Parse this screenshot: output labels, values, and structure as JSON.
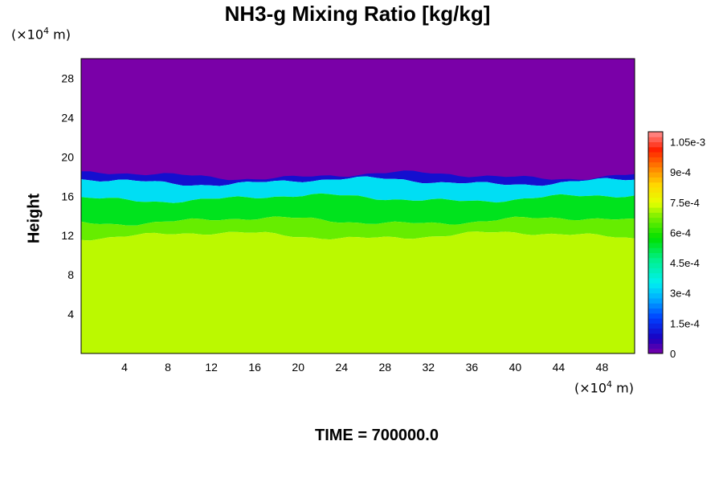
{
  "chart_data": {
    "type": "heatmap",
    "title": "NH3-g Mixing Ratio [kg/kg]",
    "ylabel": "Height",
    "xlabel": "",
    "x_unit": {
      "prefix": "(×10",
      "exp": "4",
      "suffix": " m)"
    },
    "y_unit": {
      "prefix": "(×10",
      "exp": "4",
      "suffix": " m)"
    },
    "footer": "TIME = 700000.0",
    "xlim": [
      0,
      51
    ],
    "ylim": [
      0,
      30
    ],
    "x_ticks": [
      4,
      8,
      12,
      16,
      20,
      24,
      28,
      32,
      36,
      40,
      44,
      48
    ],
    "y_ticks": [
      4,
      8,
      12,
      16,
      20,
      24,
      28
    ],
    "colorbar": {
      "range": [
        0,
        0.0011
      ],
      "tick_values": [
        0,
        0.00015,
        0.0003,
        0.00045,
        0.0006,
        0.00075,
        0.0009,
        0.00105
      ],
      "tick_labels": [
        "0",
        "1.5e-4",
        "3e-4",
        "4.5e-4",
        "6e-4",
        "7.5e-4",
        "9e-4",
        "1.05e-3"
      ],
      "color_stops": [
        [
          0.0,
          "#7a00a8"
        ],
        [
          0.07,
          "#1a00c0"
        ],
        [
          0.16,
          "#0040ff"
        ],
        [
          0.25,
          "#00b0ff"
        ],
        [
          0.32,
          "#00f0f0"
        ],
        [
          0.42,
          "#00f090"
        ],
        [
          0.52,
          "#00e000"
        ],
        [
          0.62,
          "#80f000"
        ],
        [
          0.68,
          "#e6ff00"
        ],
        [
          0.76,
          "#ffd800"
        ],
        [
          0.84,
          "#ff8000"
        ],
        [
          0.92,
          "#ff2000"
        ],
        [
          1.0,
          "#ff9090"
        ]
      ]
    },
    "field": {
      "upper_value": 0,
      "lower_value": 0.00072,
      "layers": [
        {
          "name": "depleted-layer",
          "value": 0,
          "y_bottom": 18,
          "y_top": 30
        },
        {
          "name": "transition-dark-blue",
          "value": 0.0001,
          "y_bottom": 17.5,
          "y_top": 18.1
        },
        {
          "name": "transition-cyan",
          "value": 0.00033,
          "y_bottom": 15.8,
          "y_top": 17.5
        },
        {
          "name": "transition-green",
          "value": 0.00055,
          "y_bottom": 13.5,
          "y_top": 15.8
        },
        {
          "name": "transition-yellowgreen",
          "value": 0.00066,
          "y_bottom": 12.0,
          "y_top": 13.5
        },
        {
          "name": "well-mixed-layer",
          "value": 0.00072,
          "y_bottom": 0,
          "y_top": 12.0
        }
      ]
    }
  }
}
